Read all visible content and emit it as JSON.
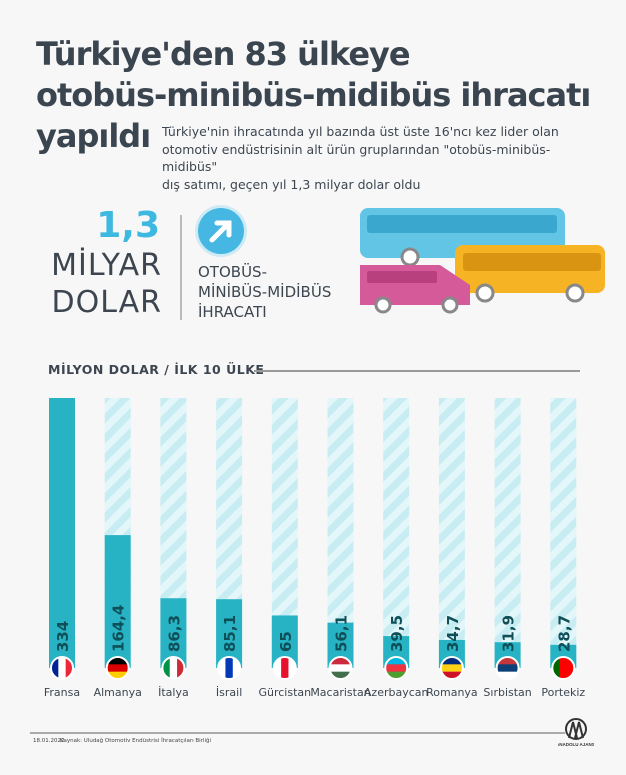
{
  "header": {
    "title_lines": [
      "Türkiye'den 83 ülkeye",
      "otobüs-minibüs-midibüs ihracatı",
      "yapıldı"
    ],
    "subtitle_lines": [
      "Türkiye'nin ihracatında yıl bazında üst üste 16'ncı kez lider olan",
      "otomotiv endüstrisinin alt ürün gruplarından \"otobüs-minibüs-midibüs\"",
      "dış satımı, geçen yıl 1,3 milyar dolar oldu"
    ]
  },
  "highlight": {
    "value": "1,3",
    "unit_line1": "MİLYAR",
    "unit_line2": "DOLAR",
    "label_lines": [
      "OTOBÜS-",
      "MİNİBÜS-MİDİBÜS",
      "İHRACATI"
    ],
    "icon": "arrow-up-right-icon"
  },
  "chart_data": {
    "type": "bar",
    "title": "MİLYON DOLAR / İLK 10 ÜLKE",
    "categories": [
      "Fransa",
      "Almanya",
      "İtalya",
      "İsrail",
      "Gürcistan",
      "Macaristan",
      "Azerbaycan",
      "Romanya",
      "Sırbistan",
      "Portekiz"
    ],
    "values": [
      334,
      164.4,
      86.3,
      85.1,
      65,
      56.1,
      39.5,
      34.7,
      31.9,
      28.7
    ],
    "labels": [
      "334",
      "164,4",
      "86,3",
      "85,1",
      "65",
      "56,1",
      "39,5",
      "34,7",
      "31,9",
      "28,7"
    ],
    "ylim": [
      0,
      334
    ],
    "grid": false,
    "colors": {
      "bar": "#27b3c4",
      "bar_bg": "#cfeff4",
      "label": "#0e4f58"
    }
  },
  "footer": {
    "date": "18.01.2022",
    "source": "Kaynak: Uludağ Otomotiv Endüstrisi İhracatçıları Birliği",
    "logo_text": "ANADOLU AJANSI"
  }
}
